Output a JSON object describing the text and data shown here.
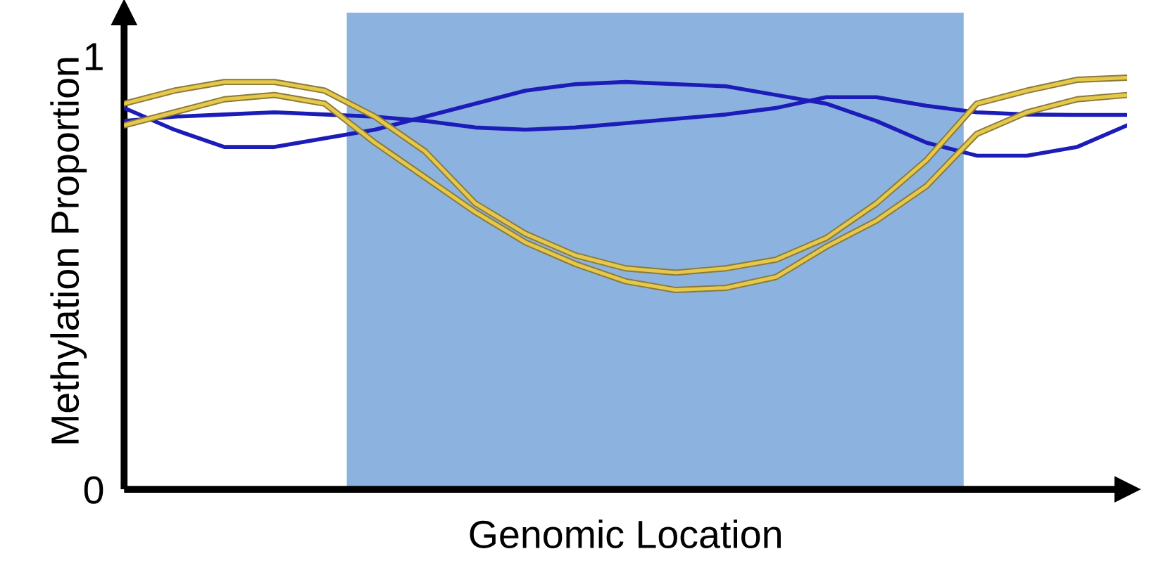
{
  "chart_data": {
    "type": "line",
    "xlabel": "Genomic Location",
    "ylabel": "Methylation Proportion",
    "categories": [
      null,
      null,
      null,
      null,
      null,
      null,
      null,
      null,
      null,
      null,
      null,
      null,
      null,
      null,
      null,
      null,
      null,
      null,
      null,
      null,
      null
    ],
    "ylim": [
      0,
      1.1
    ],
    "yticks": [
      0,
      1
    ],
    "grid": false,
    "marker": "none",
    "line_style": "solid",
    "series": [
      {
        "color": "#1c1cb8",
        "values": [
          0.88,
          0.83,
          0.79,
          0.79,
          0.81,
          0.83,
          0.86,
          0.89,
          0.92,
          0.935,
          0.94,
          0.935,
          0.93,
          0.91,
          0.89,
          0.85,
          0.8,
          0.77,
          0.77,
          0.79,
          0.84
        ]
      },
      {
        "color": "#1c1cb8",
        "values": [
          0.85,
          0.86,
          0.865,
          0.87,
          0.865,
          0.86,
          0.85,
          0.835,
          0.83,
          0.835,
          0.845,
          0.855,
          0.865,
          0.88,
          0.905,
          0.905,
          0.885,
          0.87,
          0.865,
          0.864,
          0.864
        ]
      },
      {
        "color": "#e6c84a",
        "values": [
          0.89,
          0.92,
          0.94,
          0.94,
          0.92,
          0.86,
          0.78,
          0.66,
          0.59,
          0.54,
          0.51,
          0.5,
          0.51,
          0.53,
          0.58,
          0.66,
          0.76,
          0.89,
          0.92,
          0.945,
          0.95
        ]
      },
      {
        "color": "#e6c84a",
        "values": [
          0.84,
          0.87,
          0.9,
          0.91,
          0.89,
          0.8,
          0.72,
          0.64,
          0.57,
          0.52,
          0.48,
          0.46,
          0.465,
          0.49,
          0.56,
          0.62,
          0.7,
          0.82,
          0.87,
          0.9,
          0.91
        ]
      }
    ]
  }
}
